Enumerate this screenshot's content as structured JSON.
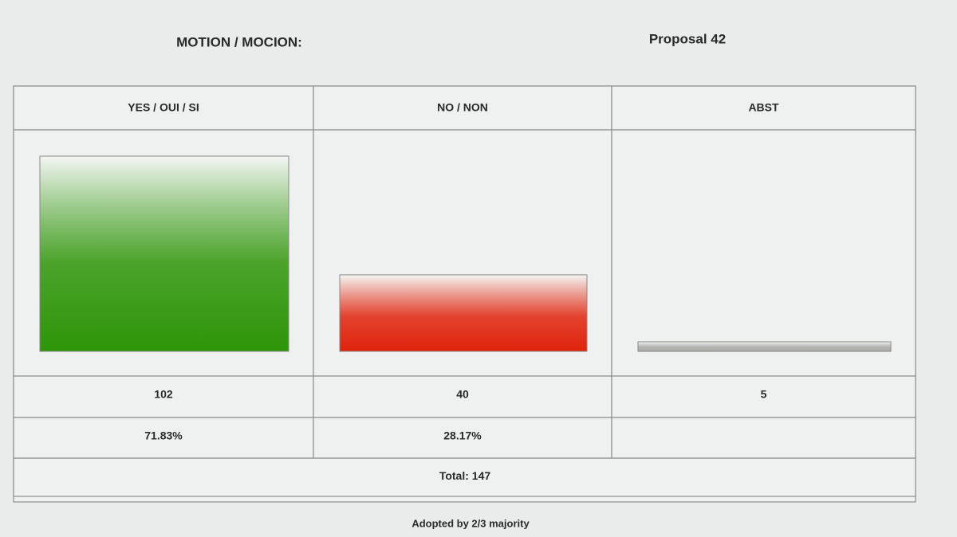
{
  "header": {
    "motion_label": "MOTION / MOCION:",
    "motion": "Proposal 42"
  },
  "chart_data": {
    "type": "bar",
    "categories": [
      "YES / OUI / SI",
      "NO / NON",
      "ABST"
    ],
    "values": [
      102,
      40,
      5
    ],
    "percent_labels": [
      "71.83%",
      "28.17%",
      null
    ],
    "colors": [
      "#2e9508",
      "#e0230c",
      "#a9a9a6"
    ]
  },
  "total_label": "Total:",
  "total": 147,
  "footer": "Adopted by 2/3 majority"
}
